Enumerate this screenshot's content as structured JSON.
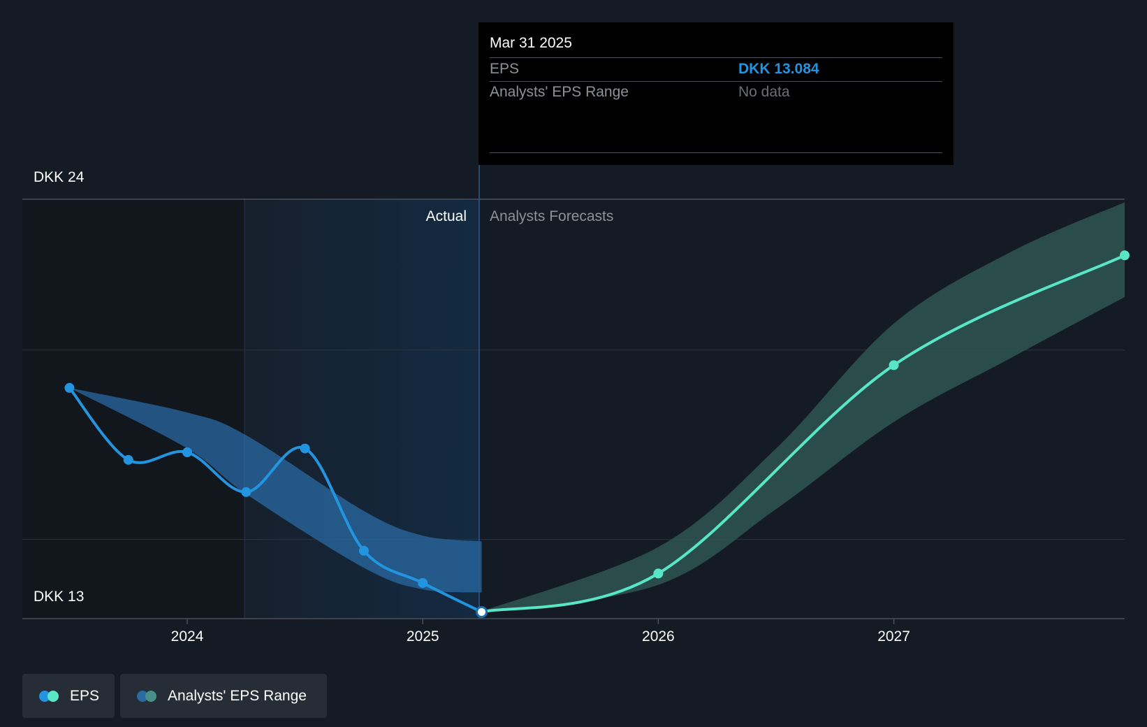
{
  "chart_data": {
    "type": "line",
    "title": "",
    "currency": "DKK",
    "y_axis": {
      "labels": [
        "DKK 24",
        "DKK 13"
      ],
      "ylim": [
        13,
        24
      ]
    },
    "x_axis": {
      "tick_labels": [
        "2024",
        "2025",
        "2026",
        "2027"
      ],
      "xlim": [
        2023.3,
        2027.98
      ]
    },
    "regions": {
      "actual_label": "Actual",
      "forecast_label": "Analysts Forecasts",
      "past_shaded_from": 2024.25,
      "split_at": 2025.25
    },
    "series": [
      {
        "name": "EPS",
        "kind": "actual",
        "color": "#2394df",
        "points": [
          {
            "x": 2023.5,
            "y": 19.0
          },
          {
            "x": 2023.75,
            "y": 17.1
          },
          {
            "x": 2024.0,
            "y": 17.3
          },
          {
            "x": 2024.25,
            "y": 16.25
          },
          {
            "x": 2024.5,
            "y": 17.4
          },
          {
            "x": 2024.75,
            "y": 14.7
          },
          {
            "x": 2025.0,
            "y": 13.85
          },
          {
            "x": 2025.25,
            "y": 13.084
          }
        ]
      },
      {
        "name": "EPS",
        "kind": "forecast",
        "color": "#58e6c6",
        "points": [
          {
            "x": 2025.25,
            "y": 13.084
          },
          {
            "x": 2026.0,
            "y": 14.1
          },
          {
            "x": 2027.0,
            "y": 19.6
          },
          {
            "x": 2027.98,
            "y": 22.5
          }
        ]
      }
    ],
    "ranges": [
      {
        "name": "Analysts' EPS Range",
        "kind": "actual",
        "color": "#2a6aa3",
        "upper": [
          {
            "x": 2023.5,
            "y": 19.0
          },
          {
            "x": 2024.0,
            "y": 18.35
          },
          {
            "x": 2024.25,
            "y": 17.75
          },
          {
            "x": 2024.75,
            "y": 15.75
          },
          {
            "x": 2025.0,
            "y": 15.1
          },
          {
            "x": 2025.25,
            "y": 14.95
          }
        ],
        "lower": [
          {
            "x": 2023.5,
            "y": 19.0
          },
          {
            "x": 2024.0,
            "y": 17.4
          },
          {
            "x": 2024.25,
            "y": 16.2
          },
          {
            "x": 2024.75,
            "y": 14.25
          },
          {
            "x": 2025.0,
            "y": 13.68
          },
          {
            "x": 2025.25,
            "y": 13.6
          }
        ]
      },
      {
        "name": "Analysts' EPS Range",
        "kind": "forecast",
        "color": "#2e5652",
        "upper": [
          {
            "x": 2025.25,
            "y": 13.1
          },
          {
            "x": 2026.0,
            "y": 14.8
          },
          {
            "x": 2026.5,
            "y": 17.4
          },
          {
            "x": 2027.0,
            "y": 20.7
          },
          {
            "x": 2027.5,
            "y": 22.6
          },
          {
            "x": 2027.98,
            "y": 23.9
          }
        ],
        "lower": [
          {
            "x": 2025.25,
            "y": 13.06
          },
          {
            "x": 2026.0,
            "y": 13.8
          },
          {
            "x": 2026.5,
            "y": 15.8
          },
          {
            "x": 2027.0,
            "y": 18.1
          },
          {
            "x": 2027.5,
            "y": 19.8
          },
          {
            "x": 2027.98,
            "y": 21.4
          }
        ]
      }
    ],
    "gridlines": [
      24,
      20,
      15,
      13
    ]
  },
  "tooltip": {
    "date": "Mar 31 2025",
    "rows": [
      {
        "label": "EPS",
        "value": "DKK 13.084"
      },
      {
        "label": "Analysts' EPS Range",
        "value": "No data"
      }
    ]
  },
  "legend": {
    "items": [
      {
        "label": "EPS",
        "colors": [
          "#2394df",
          "#58e6c6"
        ]
      },
      {
        "label": "Analysts' EPS Range",
        "colors": [
          "#2a6aa3",
          "#4a8f87"
        ]
      }
    ]
  },
  "colors": {
    "background": "#151b24",
    "grid": "#2d343d",
    "axis_text": "#ffffff",
    "muted_text": "#8e9297",
    "eps_value": "#2394df"
  }
}
